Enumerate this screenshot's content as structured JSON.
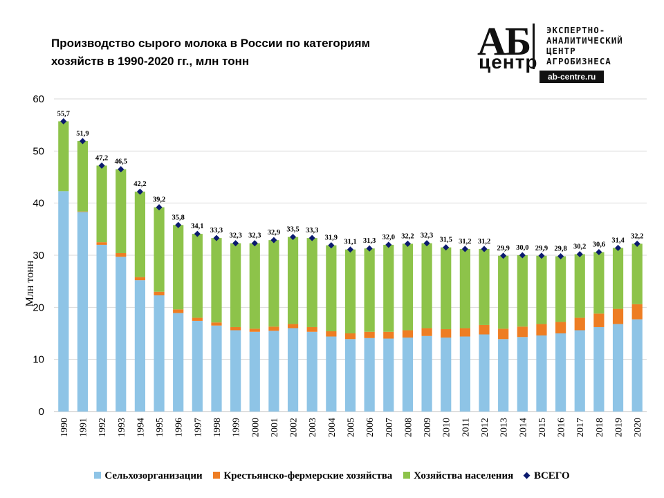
{
  "chart_data": {
    "type": "bar",
    "title_lines": [
      "Производство  сырого молока в России по категориям",
      "хозяйств в 1990-2020 гг., млн тонн"
    ],
    "ylabel": "Млн тонн",
    "ylim": [
      0,
      60
    ],
    "yticks": [
      "0",
      "10",
      "20",
      "30",
      "40",
      "50",
      "60"
    ],
    "categories": [
      "1990",
      "1991",
      "1992",
      "1993",
      "1994",
      "1995",
      "1996",
      "1997",
      "1998",
      "1999",
      "2000",
      "2001",
      "2002",
      "2003",
      "2004",
      "2005",
      "2006",
      "2007",
      "2008",
      "2009",
      "2010",
      "2011",
      "2012",
      "2013",
      "2014",
      "2015",
      "2016",
      "2017",
      "2018",
      "2019",
      "2020"
    ],
    "series": [
      {
        "name": "Сельхозорганизации",
        "color": "#8ec4e6",
        "values": [
          42.3,
          38.3,
          32.0,
          29.7,
          25.2,
          22.3,
          18.9,
          17.4,
          16.5,
          15.6,
          15.3,
          15.5,
          16.0,
          15.3,
          14.4,
          13.9,
          14.1,
          14.0,
          14.2,
          14.5,
          14.2,
          14.4,
          14.8,
          13.9,
          14.3,
          14.6,
          15.0,
          15.6,
          16.2,
          16.8,
          17.7
        ]
      },
      {
        "name": "Крестьянско-фермерские хозяйства",
        "color": "#ee7d23",
        "values": [
          0.0,
          0.1,
          0.5,
          0.7,
          0.6,
          0.7,
          0.7,
          0.6,
          0.6,
          0.6,
          0.6,
          0.8,
          0.8,
          0.9,
          1.0,
          1.1,
          1.2,
          1.3,
          1.4,
          1.5,
          1.6,
          1.6,
          1.8,
          2.0,
          2.0,
          2.2,
          2.2,
          2.4,
          2.6,
          2.9,
          2.9
        ]
      },
      {
        "name": "Хозяйства населения",
        "color": "#8dc34a",
        "values": [
          13.4,
          13.5,
          14.7,
          16.1,
          16.4,
          16.2,
          16.2,
          16.1,
          16.2,
          16.1,
          16.4,
          16.6,
          16.7,
          17.1,
          16.5,
          16.1,
          16.0,
          16.7,
          16.6,
          16.3,
          15.7,
          15.2,
          14.6,
          14.0,
          13.7,
          13.1,
          12.6,
          12.2,
          11.8,
          11.7,
          11.6
        ]
      }
    ],
    "totals": {
      "name": "ВСЕГО",
      "color": "#0b1a6e",
      "values": [
        55.7,
        51.9,
        47.2,
        46.5,
        42.2,
        39.2,
        35.8,
        34.1,
        33.3,
        32.3,
        32.3,
        32.9,
        33.5,
        33.3,
        31.9,
        31.1,
        31.3,
        32.0,
        32.2,
        32.3,
        31.5,
        31.2,
        31.2,
        29.9,
        30.0,
        29.9,
        29.8,
        30.2,
        30.6,
        31.4,
        32.2
      ],
      "labels": [
        "55,7",
        "51,9",
        "47,2",
        "46,5",
        "42,2",
        "39,2",
        "35,8",
        "34,1",
        "33,3",
        "32,3",
        "32,3",
        "32,9",
        "33,5",
        "33,3",
        "31,9",
        "31,1",
        "31,3",
        "32,0",
        "32,2",
        "32,3",
        "31,5",
        "31,2",
        "31,2",
        "29,9",
        "30,0",
        "29,9",
        "29,8",
        "30,2",
        "30,6",
        "31,4",
        "32,2"
      ]
    },
    "grid": true,
    "legend_position": "bottom"
  },
  "logo": {
    "mark": "АБ",
    "mark_sub": "центр",
    "text_lines": [
      "ЭКСПЕРТНО-",
      "АНАЛИТИЧЕСКИЙ",
      "ЦЕНТР",
      "АГРОБИЗНЕСА"
    ],
    "url": "ab-centre.ru"
  }
}
